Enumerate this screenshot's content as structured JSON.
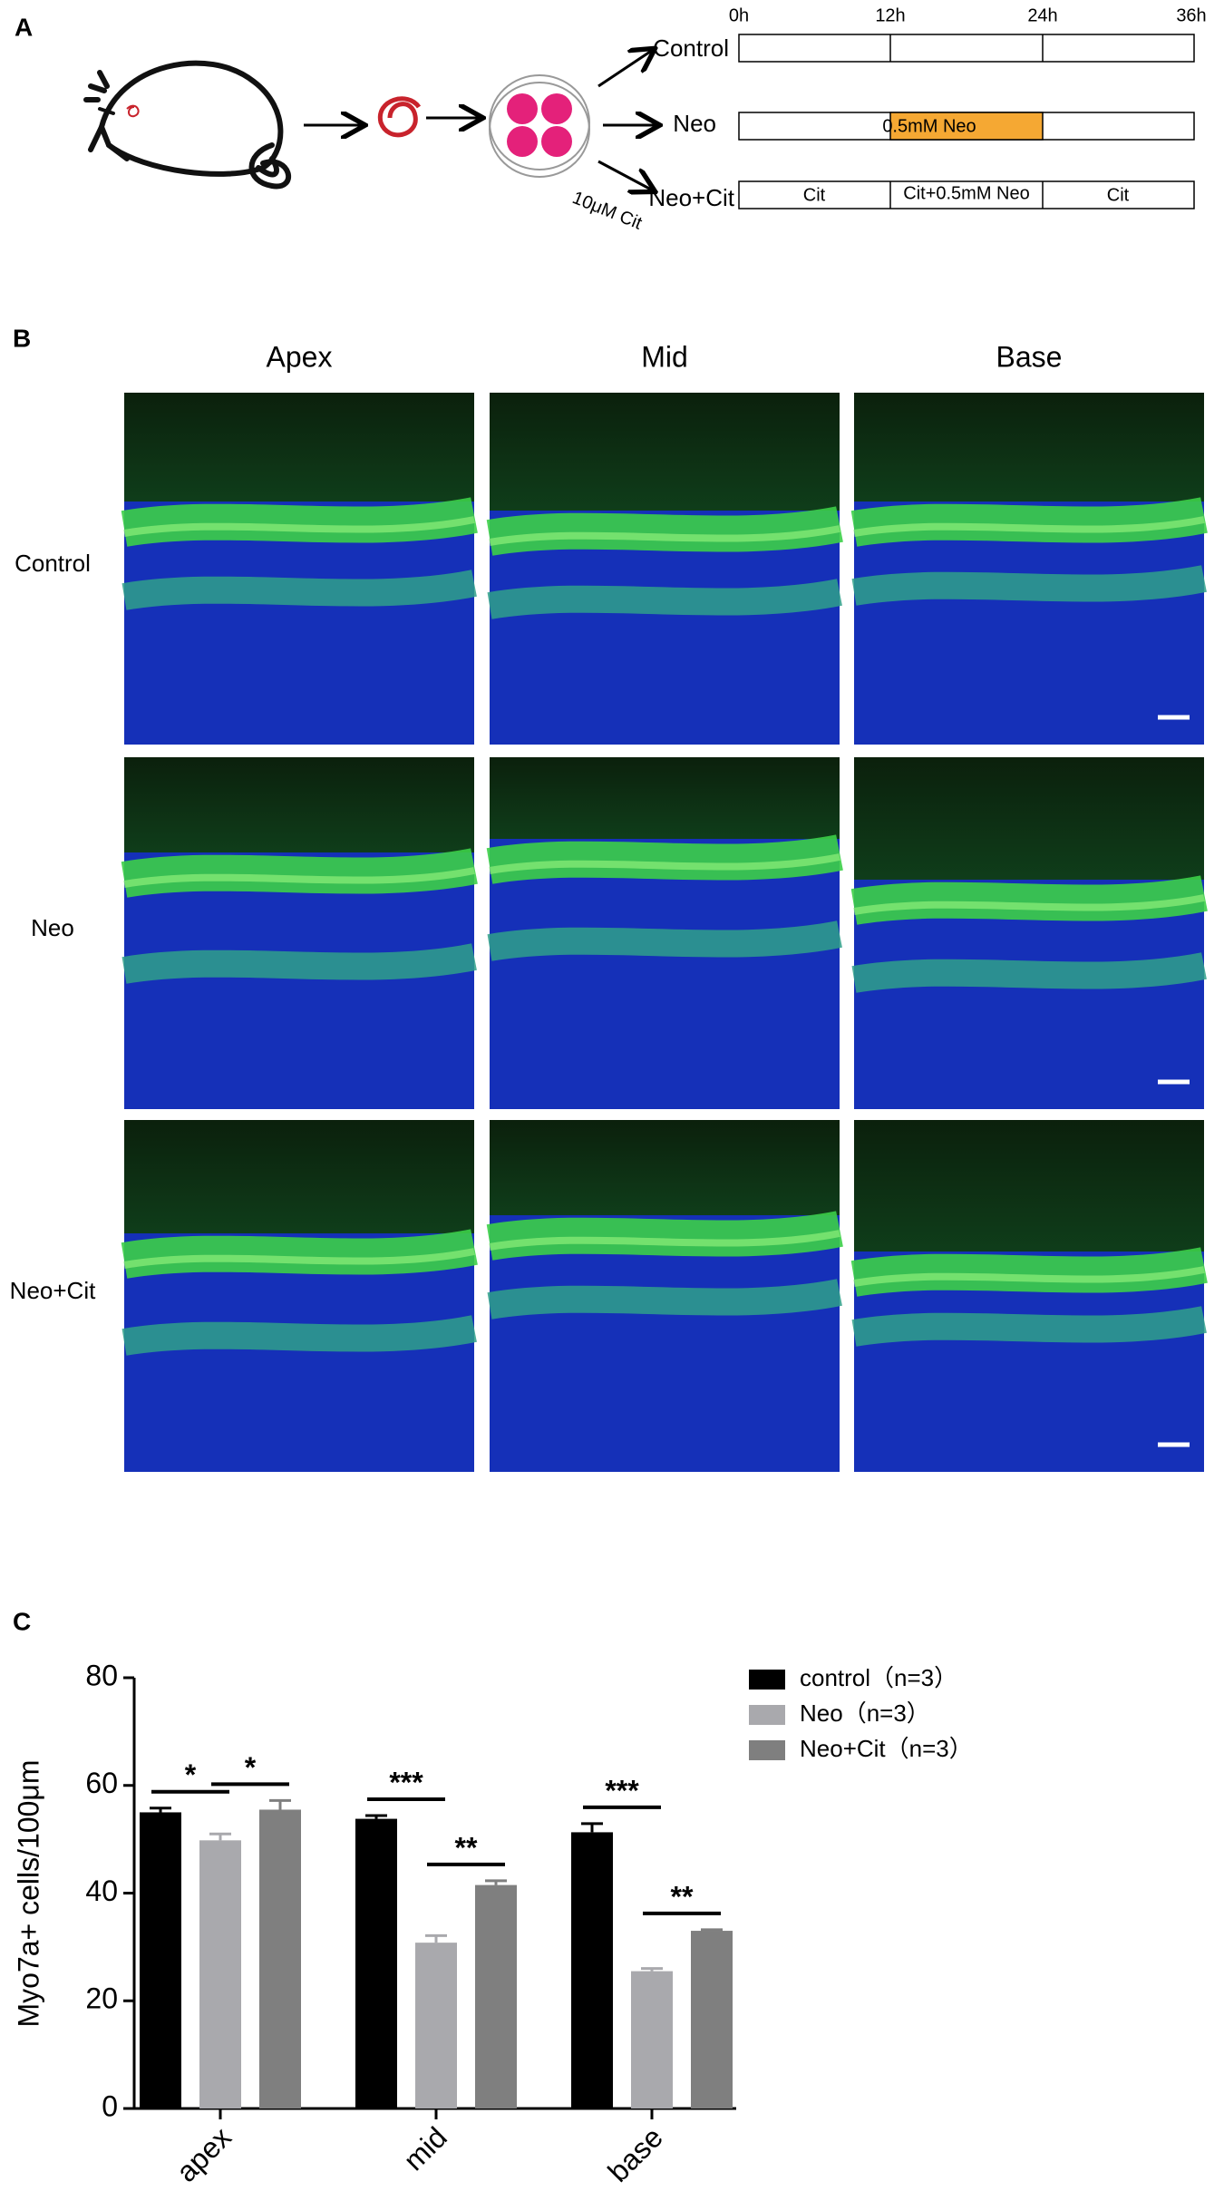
{
  "panel_a": {
    "label": "A",
    "groups": [
      "Control",
      "Neo",
      "Neo+Cit"
    ],
    "treatment": "10μM Cit",
    "time_labels": [
      "0h",
      "12h",
      "24h",
      "36h"
    ],
    "neo_segment": "0.5mM Neo",
    "cit_segments": [
      "Cit",
      "Cit+0.5mM Neo",
      "Cit"
    ]
  },
  "panel_b": {
    "label": "B",
    "columns": [
      "Apex",
      "Mid",
      "Base"
    ],
    "rows": [
      "Control",
      "Neo",
      "Neo+Cit"
    ]
  },
  "chart_data": {
    "type": "bar",
    "label": "C",
    "y_label": "Myo7a+ cells/100μm",
    "categories": [
      "apex",
      "mid",
      "base"
    ],
    "series": [
      {
        "name": "control（n=3）",
        "color": "#000000",
        "values": [
          55,
          53.8,
          51.3
        ],
        "errors": [
          0.8,
          0.6,
          1.6
        ]
      },
      {
        "name": "Neo（n=3）",
        "color": "#a9a9ad",
        "values": [
          49.8,
          30.8,
          25.5
        ],
        "errors": [
          1.2,
          1.3,
          0.5
        ]
      },
      {
        "name": "Neo+Cit（n=3）",
        "color": "#7f7f7f",
        "values": [
          55.5,
          41.5,
          33
        ],
        "errors": [
          1.7,
          0.8,
          0.2
        ]
      }
    ],
    "significance": [
      [
        "*",
        "*"
      ],
      [
        "***",
        "**"
      ],
      [
        "***",
        "**"
      ]
    ],
    "ylim": [
      0,
      80
    ],
    "yticks": [
      0,
      20,
      40,
      60,
      80
    ]
  }
}
